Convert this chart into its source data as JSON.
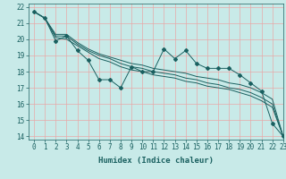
{
  "title": "",
  "xlabel": "Humidex (Indice chaleur)",
  "xlim": [
    -0.5,
    23
  ],
  "ylim": [
    13.8,
    22.2
  ],
  "yticks": [
    14,
    15,
    16,
    17,
    18,
    19,
    20,
    21,
    22
  ],
  "xticks": [
    0,
    1,
    2,
    3,
    4,
    5,
    6,
    7,
    8,
    9,
    10,
    11,
    12,
    13,
    14,
    15,
    16,
    17,
    18,
    19,
    20,
    21,
    22,
    23
  ],
  "bg_color": "#c8eae8",
  "grid_color": "#e8a8a8",
  "line_color": "#1a6060",
  "lines": [
    [
      21.7,
      21.3,
      19.9,
      20.2,
      19.3,
      18.7,
      17.5,
      17.5,
      17.0,
      18.3,
      18.0,
      18.0,
      19.4,
      18.8,
      19.3,
      18.5,
      18.2,
      18.2,
      18.2,
      17.8,
      17.3,
      16.8,
      14.8,
      14.0
    ],
    [
      21.7,
      21.3,
      20.2,
      20.2,
      19.7,
      19.3,
      19.0,
      18.8,
      18.5,
      18.3,
      18.2,
      18.0,
      17.9,
      17.8,
      17.6,
      17.5,
      17.3,
      17.2,
      17.0,
      16.9,
      16.7,
      16.4,
      16.0,
      14.0
    ],
    [
      21.7,
      21.3,
      20.1,
      20.0,
      19.6,
      19.2,
      18.8,
      18.6,
      18.3,
      18.1,
      18.0,
      17.8,
      17.7,
      17.6,
      17.4,
      17.3,
      17.1,
      17.0,
      16.9,
      16.7,
      16.5,
      16.2,
      15.8,
      14.0
    ],
    [
      21.7,
      21.3,
      20.3,
      20.3,
      19.8,
      19.4,
      19.1,
      18.9,
      18.7,
      18.5,
      18.4,
      18.2,
      18.1,
      18.0,
      17.9,
      17.7,
      17.6,
      17.5,
      17.3,
      17.2,
      17.0,
      16.7,
      16.3,
      14.0
    ]
  ],
  "font_size": 6.5,
  "tick_font_size": 5.5,
  "marker_line_idx": 0
}
